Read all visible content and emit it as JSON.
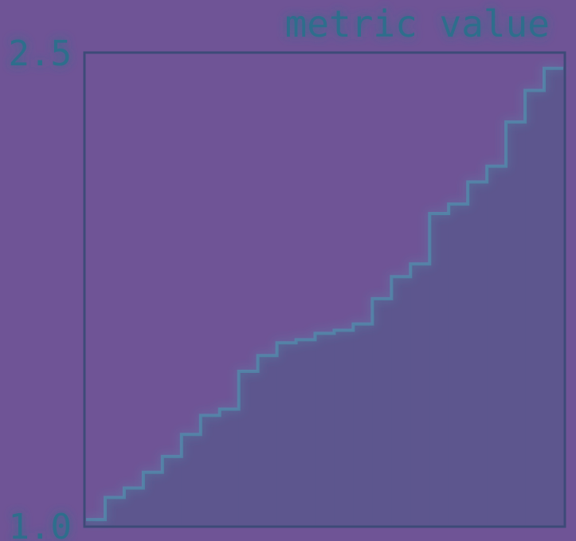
{
  "chart_data": {
    "type": "area",
    "title": "metric value",
    "xlabel": "",
    "ylabel": "",
    "ylim": [
      1.0,
      2.5
    ],
    "yticks": [
      "1.0",
      "2.5"
    ],
    "x": [
      1,
      2,
      3,
      4,
      5,
      6,
      7,
      8,
      9,
      10,
      11,
      12,
      13,
      14,
      15,
      16,
      17,
      18,
      19,
      20,
      21,
      22,
      23,
      24,
      25
    ],
    "values": [
      1.02,
      1.09,
      1.12,
      1.17,
      1.22,
      1.29,
      1.35,
      1.37,
      1.49,
      1.54,
      1.58,
      1.59,
      1.61,
      1.62,
      1.64,
      1.72,
      1.79,
      1.83,
      1.99,
      2.02,
      2.09,
      2.14,
      2.28,
      2.38,
      2.45
    ],
    "colors": {
      "background": "#6f5496",
      "fill": "#5d568e",
      "edge": "#4b9db5",
      "axis": "#3d4a78",
      "text": "#2f6e8c"
    }
  }
}
